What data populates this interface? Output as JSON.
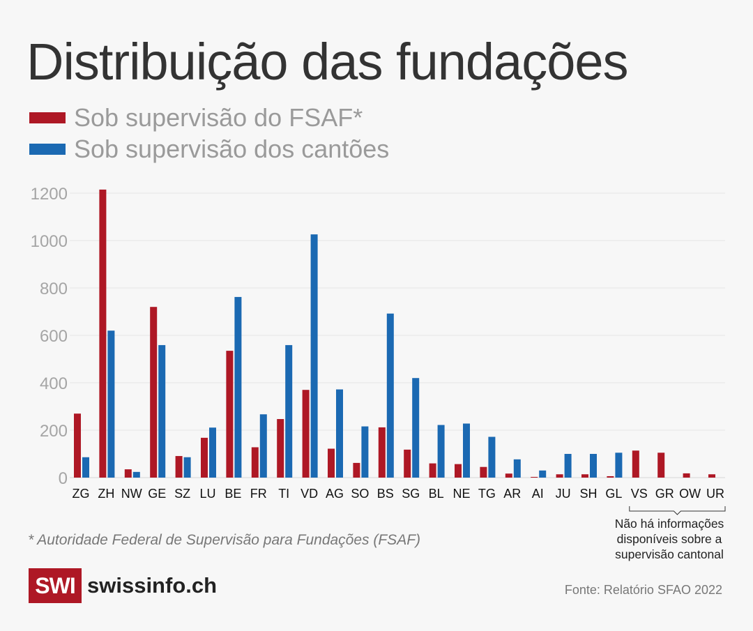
{
  "chart_data": {
    "type": "bar",
    "title": "Distribuição das fundações",
    "xlabel": "",
    "ylabel": "",
    "ylim": [
      0,
      1200
    ],
    "yticks": [
      0,
      200,
      400,
      600,
      800,
      1000,
      1200
    ],
    "grid": true,
    "legend_placement": "top-left",
    "categories": [
      "ZG",
      "ZH",
      "NW",
      "GE",
      "SZ",
      "LU",
      "BE",
      "FR",
      "TI",
      "VD",
      "AG",
      "SO",
      "BS",
      "SG",
      "BL",
      "NE",
      "TG",
      "AR",
      "AI",
      "JU",
      "SH",
      "GL",
      "VS",
      "GR",
      "OW",
      "UR"
    ],
    "series": [
      {
        "name": "Sob supervisão do FSAF*",
        "color": "#ae1825",
        "values": [
          270,
          1215,
          35,
          720,
          91,
          168,
          535,
          128,
          247,
          370,
          122,
          62,
          212,
          118,
          60,
          57,
          45,
          17,
          3,
          14,
          14,
          6,
          114,
          105,
          18,
          14
        ]
      },
      {
        "name": "Sob supervisão dos cantões",
        "color": "#1b69b2",
        "values": [
          86,
          620,
          24,
          559,
          86,
          211,
          762,
          267,
          559,
          1026,
          372,
          216,
          692,
          420,
          222,
          228,
          172,
          77,
          30,
          100,
          100,
          105,
          null,
          null,
          null,
          null
        ]
      }
    ],
    "annotation": "Não há informações disponíveis sobre a supervisão cantonal",
    "footnote": "* Autoridade Federal de Supervisão para Fundações (FSAF)"
  },
  "brand": {
    "box": "SWI",
    "name": "swissinfo.ch"
  },
  "source": "Fonte: Relatório SFAO 2022"
}
